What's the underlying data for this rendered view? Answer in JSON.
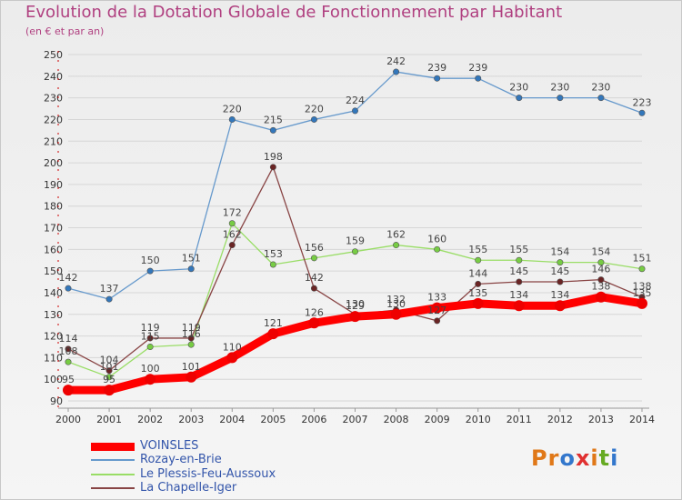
{
  "title": "Evolution de la Dotation Globale de Fonctionnement par Habitant",
  "subtitle": "(en € et par an)",
  "brand": "Proxiti",
  "chart_data": {
    "type": "line",
    "title": "Evolution de la Dotation Globale de Fonctionnement par Habitant",
    "subtitle": "(en € et par an)",
    "xlabel": "",
    "ylabel": "",
    "ylim": [
      90,
      250
    ],
    "yticks": [
      90,
      100,
      110,
      120,
      130,
      140,
      150,
      160,
      170,
      180,
      190,
      200,
      210,
      220,
      230,
      240,
      250
    ],
    "grid": "horizontal",
    "legend_position": "bottom-left",
    "categories": [
      "2000",
      "2001",
      "2002",
      "2003",
      "2004",
      "2005",
      "2006",
      "2007",
      "2008",
      "2009",
      "2010",
      "2011",
      "2012",
      "2013",
      "2014"
    ],
    "series": [
      {
        "name": "Rozay-en-Brie",
        "color": "#6699cc",
        "marker": "#3377bb",
        "values": [
          142,
          137,
          150,
          151,
          220,
          215,
          220,
          224,
          242,
          239,
          239,
          230,
          230,
          230,
          223
        ]
      },
      {
        "name": "Le Plessis-Feu-Aussoux",
        "color": "#99dd66",
        "marker": "#77cc44",
        "values": [
          108,
          101,
          115,
          116,
          172,
          153,
          156,
          159,
          162,
          160,
          155,
          155,
          154,
          154,
          151
        ]
      },
      {
        "name": "La Chapelle-Iger",
        "color": "#884444",
        "marker": "#6a2424",
        "values": [
          114,
          104,
          119,
          119,
          162,
          198,
          142,
          130,
          132,
          127,
          144,
          145,
          145,
          146,
          138
        ]
      },
      {
        "name": "VOINSLES",
        "color": "#ff0000",
        "marker": "#ee0000",
        "values": [
          95,
          95,
          100,
          101,
          110,
          121,
          126,
          129,
          130,
          133,
          135,
          134,
          134,
          138,
          135
        ]
      }
    ],
    "legend_order": [
      "VOINSLES",
      "Rozay-en-Brie",
      "Le Plessis-Feu-Aussoux",
      "La Chapelle-Iger"
    ]
  }
}
